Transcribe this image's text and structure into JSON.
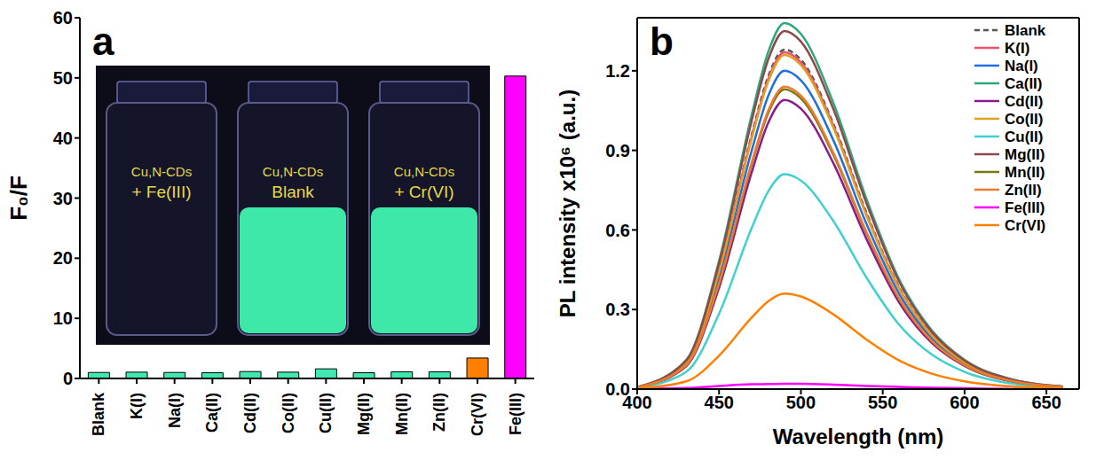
{
  "chart_data": [
    {
      "type": "bar",
      "panel_label": "a",
      "y_label": "F₀/F",
      "categories": [
        "Blank",
        "K(I)",
        "Na(I)",
        "Ca(II)",
        "Cd(II)",
        "Co(II)",
        "Cu(II)",
        "Mg(II)",
        "Mn(II)",
        "Zn(II)",
        "Cr(VI)",
        "Fe(III)"
      ],
      "values": [
        1.0,
        1.05,
        1.0,
        0.95,
        1.15,
        1.05,
        1.6,
        0.95,
        1.1,
        1.1,
        3.4,
        50.3
      ],
      "colors": [
        "#3ee8b0",
        "#3ee8b0",
        "#3ee8b0",
        "#3ee8b0",
        "#3ee8b0",
        "#3ee8b0",
        "#3ee8b0",
        "#3ee8b0",
        "#3ee8b0",
        "#3ee8b0",
        "#ff8000",
        "#ff00ff"
      ],
      "ylim": [
        0,
        60
      ],
      "yticks": [
        0,
        10,
        20,
        30,
        40,
        50,
        60
      ],
      "grid": false,
      "annotations": [
        [
          "Cu,N-CDs",
          "+ Fe(III)"
        ],
        [
          "Cu,N-CDs",
          "Blank"
        ],
        [
          "Cu,N-CDs",
          "+ Cr(VI)"
        ]
      ]
    },
    {
      "type": "line",
      "panel_label": "b",
      "x_label": "Wavelength (nm)",
      "y_label": "PL intensity x10⁶ (a.u.)",
      "x": [
        400,
        430,
        450,
        470,
        480,
        490,
        500,
        520,
        540,
        560,
        580,
        600,
        630,
        660
      ],
      "xlim": [
        400,
        670
      ],
      "xticks": [
        400,
        450,
        500,
        550,
        600,
        650
      ],
      "ylim": [
        0,
        1.4
      ],
      "yticks": [
        {
          "value": 0,
          "label": "0.0"
        },
        0.3,
        0.6,
        0.9,
        1.2
      ],
      "grid": false,
      "legend": "upper right",
      "series": [
        {
          "name": "Blank",
          "color": "#555555",
          "line_style": "dashed",
          "values": [
            0.006,
            0.102,
            0.448,
            0.96,
            1.178,
            1.28,
            1.242,
            0.998,
            0.666,
            0.384,
            0.205,
            0.102,
            0.032,
            0.009
          ]
        },
        {
          "name": "K(I)",
          "color": "#f0506e",
          "values": [
            0.006,
            0.102,
            0.445,
            0.953,
            1.168,
            1.27,
            1.232,
            0.991,
            0.66,
            0.381,
            0.203,
            0.102,
            0.032,
            0.009
          ]
        },
        {
          "name": "Na(I)",
          "color": "#1f6fe0",
          "values": [
            0.006,
            0.096,
            0.42,
            0.9,
            1.104,
            1.2,
            1.164,
            0.936,
            0.624,
            0.36,
            0.192,
            0.096,
            0.03,
            0.008
          ]
        },
        {
          "name": "Ca(II)",
          "color": "#2ca87a",
          "values": [
            0.007,
            0.11,
            0.483,
            1.035,
            1.27,
            1.38,
            1.339,
            1.076,
            0.718,
            0.414,
            0.221,
            0.11,
            0.035,
            0.01
          ]
        },
        {
          "name": "Cd(II)",
          "color": "#8b1a8b",
          "values": [
            0.005,
            0.087,
            0.382,
            0.818,
            1.003,
            1.09,
            1.057,
            0.85,
            0.567,
            0.327,
            0.174,
            0.087,
            0.027,
            0.008
          ]
        },
        {
          "name": "Co(II)",
          "color": "#e0a020",
          "values": [
            0.006,
            0.101,
            0.441,
            0.945,
            1.159,
            1.26,
            1.222,
            0.983,
            0.655,
            0.378,
            0.202,
            0.101,
            0.032,
            0.009
          ]
        },
        {
          "name": "Cu(II)",
          "color": "#40d0d0",
          "values": [
            0.004,
            0.065,
            0.284,
            0.608,
            0.745,
            0.81,
            0.786,
            0.632,
            0.421,
            0.243,
            0.13,
            0.065,
            0.02,
            0.006
          ]
        },
        {
          "name": "Mg(II)",
          "color": "#8b4a4a",
          "values": [
            0.007,
            0.108,
            0.473,
            1.013,
            1.242,
            1.35,
            1.31,
            1.053,
            0.702,
            0.405,
            0.216,
            0.108,
            0.034,
            0.009
          ]
        },
        {
          "name": "Mn(II)",
          "color": "#7a7a10",
          "values": [
            0.006,
            0.09,
            0.396,
            0.848,
            1.04,
            1.13,
            1.096,
            0.881,
            0.588,
            0.339,
            0.181,
            0.09,
            0.028,
            0.008
          ]
        },
        {
          "name": "Zn(II)",
          "color": "#f07830",
          "values": [
            0.006,
            0.091,
            0.399,
            0.855,
            1.049,
            1.14,
            1.106,
            0.889,
            0.593,
            0.342,
            0.182,
            0.091,
            0.029,
            0.008
          ]
        },
        {
          "name": "Fe(III)",
          "color": "#ff00ff",
          "values": [
            0.001,
            0.004,
            0.012,
            0.018,
            0.019,
            0.02,
            0.02,
            0.017,
            0.012,
            0.008,
            0.005,
            0.003,
            0.001,
            0.001
          ]
        },
        {
          "name": "Cr(VI)",
          "color": "#ff8000",
          "values": [
            0.002,
            0.029,
            0.126,
            0.27,
            0.331,
            0.36,
            0.349,
            0.281,
            0.187,
            0.108,
            0.058,
            0.029,
            0.009,
            0.003
          ]
        }
      ]
    }
  ]
}
